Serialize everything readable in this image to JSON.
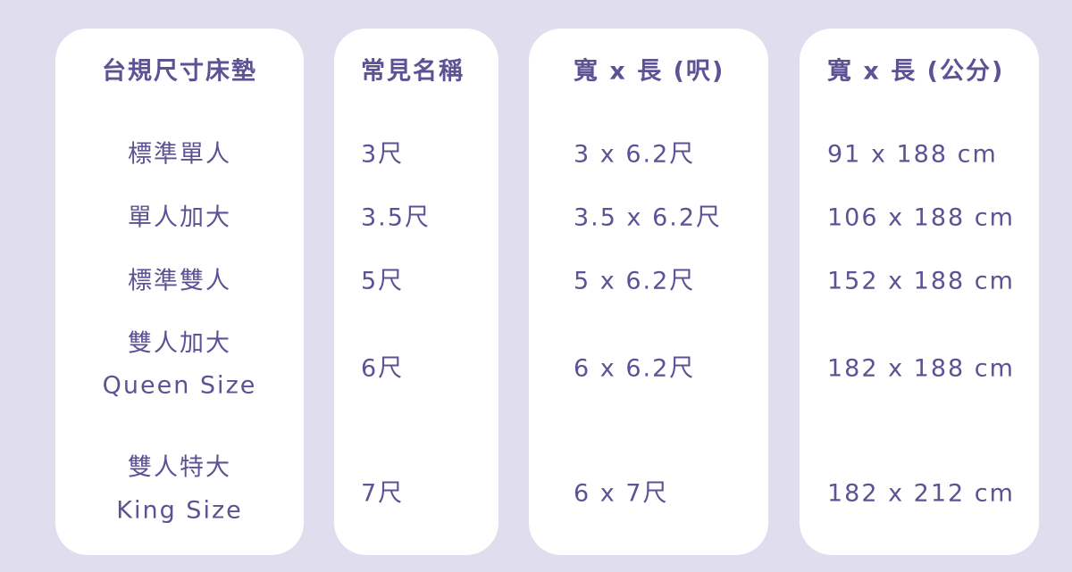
{
  "columns": [
    {
      "header": "台規尺寸床墊",
      "rows": [
        [
          "標準單人"
        ],
        [
          "單人加大"
        ],
        [
          "標準雙人"
        ],
        [
          "雙人加大",
          "Queen Size"
        ],
        [
          "雙人特大",
          "King Size"
        ]
      ]
    },
    {
      "header": "常見名稱",
      "rows": [
        [
          "3尺"
        ],
        [
          "3.5尺"
        ],
        [
          "5尺"
        ],
        [
          "6尺"
        ],
        [
          "7尺"
        ]
      ]
    },
    {
      "header": "寬 x 長 (呎)",
      "rows": [
        [
          "3 x 6.2尺"
        ],
        [
          "3.5 x 6.2尺"
        ],
        [
          "5 x 6.2尺"
        ],
        [
          "6 x 6.2尺"
        ],
        [
          "6 x 7尺"
        ]
      ]
    },
    {
      "header": "寬 x 長 (公分)",
      "rows": [
        [
          "91 x 188 cm"
        ],
        [
          "106 x 188 cm"
        ],
        [
          "152 x 188 cm"
        ],
        [
          "182 x 188 cm"
        ],
        [
          "182 x 212 cm"
        ]
      ]
    }
  ],
  "colors": {
    "background": "#e0ddef",
    "card": "#ffffff",
    "text": "#5e5294"
  }
}
